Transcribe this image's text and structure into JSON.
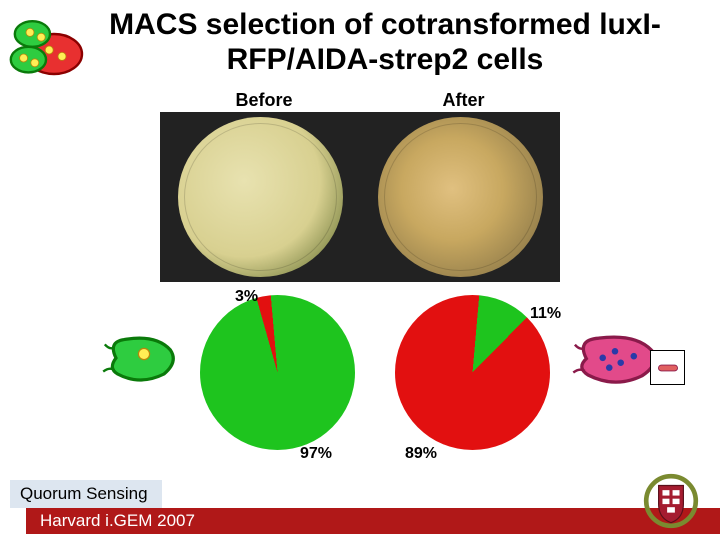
{
  "title": {
    "text": "MACS selection of cotransformed luxI-RFP/AIDA-strep2 cells",
    "fontsize": 30
  },
  "sections": {
    "before": "Before",
    "after": "After",
    "fontsize": 18
  },
  "pies": {
    "before": {
      "green_pct": 97,
      "red_pct": 3,
      "green_label": "97%",
      "red_label": "3%",
      "green_color": "#1ec41e",
      "red_color": "#e21010"
    },
    "after": {
      "green_pct": 11,
      "red_pct": 89,
      "green_label": "11%",
      "red_label": "89%",
      "green_color": "#1ec41e",
      "red_color": "#e21010"
    },
    "label_fontsize": 16
  },
  "bacteria": {
    "green": {
      "body": "#2ecc40",
      "outline": "#0a7a0a",
      "bulb": "#ffee55"
    },
    "red": {
      "body": "#e24a8a",
      "outline": "#8a1a4a",
      "dot": "#2a3aa8"
    }
  },
  "footer": {
    "line1": "Quorum Sensing",
    "line2": "Harvard i.GEM 2007",
    "fontsize": 17,
    "bg_light": "#dde6f0",
    "bg_red": "#b01818"
  },
  "harvard": {
    "shield_red": "#a51c30",
    "wreath": "#7a8a30",
    "text": "#ffffff"
  }
}
